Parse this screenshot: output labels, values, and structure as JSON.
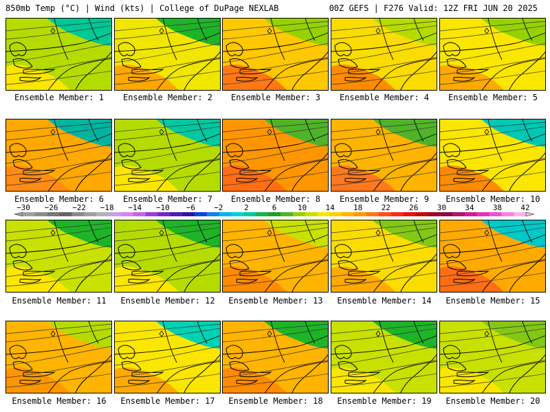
{
  "header": {
    "left": "850mb Temp (°C) | Wind (kts) | College of DuPage NEXLAB",
    "right": "00Z GEFS | F276 Valid: 12Z FRI JUN 20 2025"
  },
  "panels": [
    {
      "label": "Ensemble Member: 1",
      "fill": "#b4dc00",
      "warm": "#fbe600",
      "cool": "#00c896"
    },
    {
      "label": "Ensemble Member: 2",
      "fill": "#f0e600",
      "warm": "#ffa800",
      "cool": "#1eb428"
    },
    {
      "label": "Ensemble Member: 3",
      "fill": "#ffc800",
      "warm": "#ff7814",
      "cool": "#96d200"
    },
    {
      "label": "Ensemble Member: 4",
      "fill": "#fbdc00",
      "warm": "#ff8c00",
      "cool": "#b4dc00"
    },
    {
      "label": "Ensemble Member: 5",
      "fill": "#fbe600",
      "warm": "#ffaa00",
      "cool": "#96d200"
    },
    {
      "label": "Ensemble Member: 6",
      "fill": "#ffa800",
      "warm": "#ff8c14",
      "cool": "#00b4a0"
    },
    {
      "label": "Ensemble Member: 7",
      "fill": "#b4dc00",
      "warm": "#fbe600",
      "cool": "#00c8a0"
    },
    {
      "label": "Ensemble Member: 8",
      "fill": "#ff9600",
      "warm": "#ff6e14",
      "cool": "#50b428"
    },
    {
      "label": "Ensemble Member: 9",
      "fill": "#ffb400",
      "warm": "#ff781e",
      "cool": "#50b428"
    },
    {
      "label": "Ensemble Member: 10",
      "fill": "#fbe600",
      "warm": "#ff8c00",
      "cool": "#00c8b4"
    },
    {
      "label": "Ensemble Member: 11",
      "fill": "#c8e100",
      "warm": "#fbe600",
      "cool": "#1eb428"
    },
    {
      "label": "Ensemble Member: 12",
      "fill": "#b4dc00",
      "warm": "#fbe600",
      "cool": "#1eb428"
    },
    {
      "label": "Ensemble Member: 13",
      "fill": "#ffb400",
      "warm": "#ff8c00",
      "cool": "#c8e100"
    },
    {
      "label": "Ensemble Member: 14",
      "fill": "#fbdc00",
      "warm": "#ffaa00",
      "cool": "#82c814"
    },
    {
      "label": "Ensemble Member: 15",
      "fill": "#ffaa00",
      "warm": "#ff6e14",
      "cool": "#00c8c8"
    },
    {
      "label": "Ensemble Member: 16",
      "fill": "#ffb400",
      "warm": "#ff9600",
      "cool": "#b4dc00"
    },
    {
      "label": "Ensemble Member: 17",
      "fill": "#fbe600",
      "warm": "#ffaa00",
      "cool": "#00d2b4"
    },
    {
      "label": "Ensemble Member: 18",
      "fill": "#ffb400",
      "warm": "#ff8c00",
      "cool": "#1eb428"
    },
    {
      "label": "Ensemble Member: 19",
      "fill": "#c8e100",
      "warm": "#fbe600",
      "cool": "#1eb428"
    },
    {
      "label": "Ensemble Member: 20",
      "fill": "#c8e100",
      "warm": "#fbe600",
      "cool": "#82c814"
    }
  ],
  "colorbar": {
    "ticks": [
      "−30",
      "−26",
      "−22",
      "−18",
      "−14",
      "−10",
      "−6",
      "−2",
      "2",
      "6",
      "10",
      "14",
      "18",
      "22",
      "26",
      "30",
      "34",
      "38",
      "42"
    ],
    "colors": [
      "#a0a0a0",
      "#8c8c8c",
      "#787878",
      "#646464",
      "#8c8c8c",
      "#a0a0a0",
      "#b4b4b4",
      "#c8a0e6",
      "#dc82f0",
      "#c864e6",
      "#a03cd2",
      "#7828c8",
      "#501eb4",
      "#3214a0",
      "#0a46dc",
      "#0a82f0",
      "#00b4f0",
      "#00d2dc",
      "#00c8a0",
      "#14b450",
      "#1ea028",
      "#50b428",
      "#96d200",
      "#c8e100",
      "#fbe600",
      "#fbd200",
      "#ffb400",
      "#ff9600",
      "#ff7814",
      "#ff5014",
      "#ff281e",
      "#e61414",
      "#c80a0a",
      "#a00a28",
      "#8c0a46",
      "#b4146e",
      "#d21e96",
      "#e632b4",
      "#f050d2",
      "#f682e6",
      "#fab4f0"
    ]
  }
}
